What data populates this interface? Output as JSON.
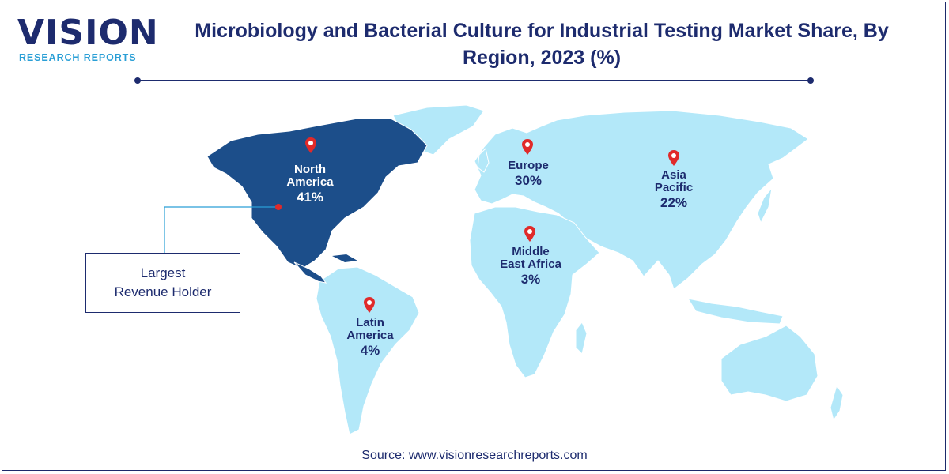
{
  "brand": {
    "name": "VISION",
    "tagline": "RESEARCH REPORTS"
  },
  "title": "Microbiology and Bacterial Culture for Industrial Testing Market Share, By Region, 2023 (%)",
  "colors": {
    "highlight": "#1c4e8a",
    "land": "#b3e8f9",
    "text": "#1d2b6e",
    "pin": "#e02a2a"
  },
  "regions": [
    {
      "id": "north-america",
      "name_line1": "North",
      "name_line2": "America",
      "share": "41%"
    },
    {
      "id": "europe",
      "name_line1": "Europe",
      "name_line2": "",
      "share": "30%"
    },
    {
      "id": "asia-pacific",
      "name_line1": "Asia",
      "name_line2": "Pacific",
      "share": "22%"
    },
    {
      "id": "middle-east-africa",
      "name_line1": "Middle",
      "name_line2": "East Africa",
      "share": "3%"
    },
    {
      "id": "latin-america",
      "name_line1": "Latin",
      "name_line2": "America",
      "share": "4%"
    }
  ],
  "callout": {
    "line1": "Largest",
    "line2": "Revenue Holder"
  },
  "source": "Source: www.visionresearchreports.com"
}
